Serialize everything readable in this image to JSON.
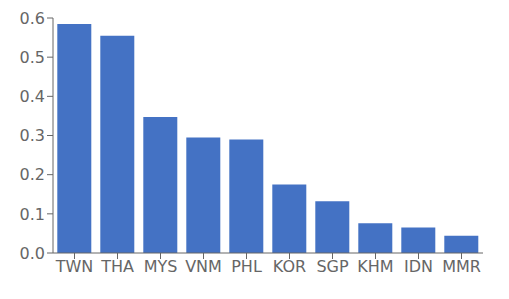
{
  "chart_data": {
    "type": "bar",
    "categories": [
      "TWN",
      "THA",
      "MYS",
      "VNM",
      "PHL",
      "KOR",
      "SGP",
      "KHM",
      "IDN",
      "MMR"
    ],
    "values": [
      0.585,
      0.555,
      0.347,
      0.295,
      0.29,
      0.175,
      0.132,
      0.076,
      0.065,
      0.044
    ],
    "color": "#4472C4",
    "ylim": [
      0,
      0.6
    ],
    "yticks": [
      {
        "value": 0,
        "label": "0.0"
      },
      0.1,
      0.2,
      0.3,
      0.4,
      0.5,
      0.6
    ],
    "grid": false
  }
}
